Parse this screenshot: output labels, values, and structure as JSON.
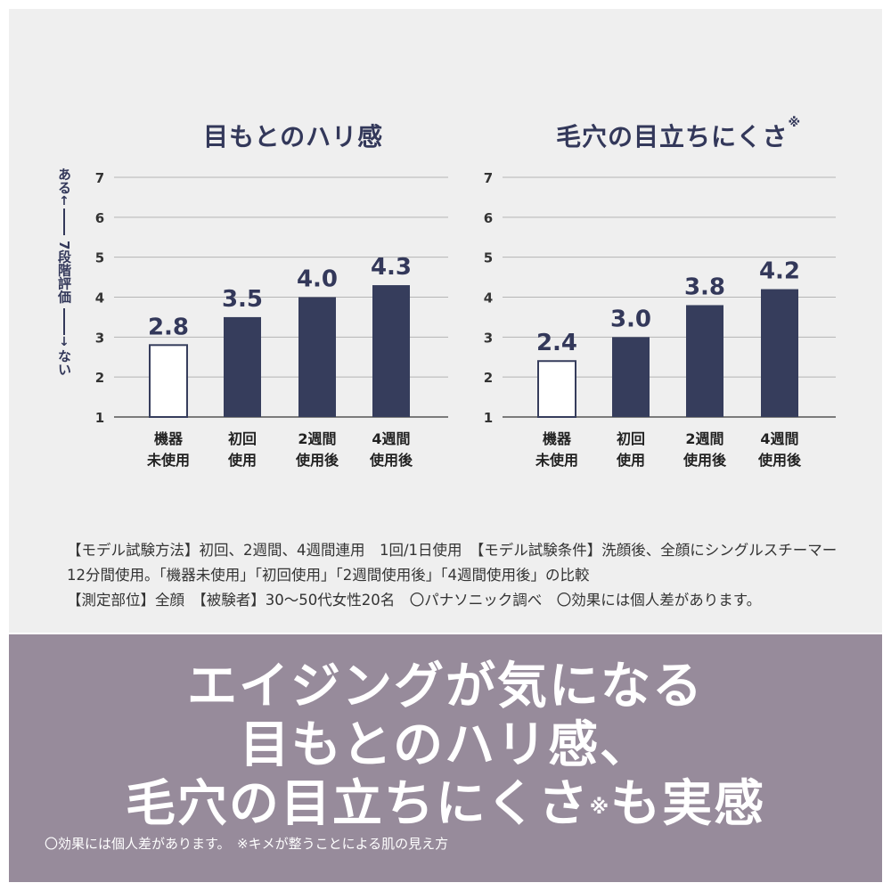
{
  "y_axis_label": {
    "top": "ある",
    "middle": "7段階評価",
    "bottom": "ない"
  },
  "chart_data": [
    {
      "type": "bar",
      "title": "目もとのハリ感",
      "title_mark": "",
      "categories": [
        [
          "機器",
          "未使用"
        ],
        [
          "初回",
          "使用"
        ],
        [
          "2週間",
          "使用後"
        ],
        [
          "4週間",
          "使用後"
        ]
      ],
      "values": [
        2.8,
        3.5,
        4.0,
        4.3
      ],
      "data_labels": [
        "2.8",
        "3.5",
        "4.0",
        "4.3"
      ],
      "ylim": [
        1,
        7
      ],
      "yticks": [
        1,
        2,
        3,
        4,
        5,
        6,
        7
      ],
      "grid": true,
      "colors": {
        "first": "#ffffff",
        "rest": "#363d5c",
        "outline": "#363d5c"
      }
    },
    {
      "type": "bar",
      "title": "毛穴の目立ちにくさ",
      "title_mark": "※",
      "categories": [
        [
          "機器",
          "未使用"
        ],
        [
          "初回",
          "使用"
        ],
        [
          "2週間",
          "使用後"
        ],
        [
          "4週間",
          "使用後"
        ]
      ],
      "values": [
        2.4,
        3.0,
        3.8,
        4.2
      ],
      "data_labels": [
        "2.4",
        "3.0",
        "3.8",
        "4.2"
      ],
      "ylim": [
        1,
        7
      ],
      "yticks": [
        1,
        2,
        3,
        4,
        5,
        6,
        7
      ],
      "grid": true,
      "colors": {
        "first": "#ffffff",
        "rest": "#363d5c",
        "outline": "#363d5c"
      }
    }
  ],
  "notes": "【モデル試験方法】初回、2週間、4週間連用　1回/1日使用　【モデル試験条件】洗顔後、全顔にシングルスチーマー12分間使用。「機器未使用」「初回使用」「2週間使用後」「4週間使用後」の比較\n【測定部位】全顔　【被験者】30〜50代女性20名　〇パナソニック調べ　〇効果には個人差があります。",
  "headline": {
    "line1": "エイジングが気になる",
    "line2": "目もとのハリ感、",
    "line3_a": "毛穴の目立ちにくさ",
    "line3_mark": "※",
    "line3_b": "も実感"
  },
  "footnote": "〇効果には個人差があります。　※キメが整うことによる肌の見え方"
}
